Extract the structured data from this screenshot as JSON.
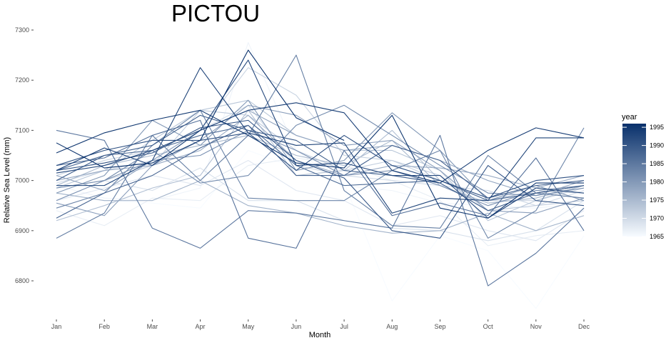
{
  "chart_data": {
    "type": "line",
    "title": "PICTOU",
    "xlabel": "Month",
    "ylabel": "Relative Sea Level (mm)",
    "categories": [
      "Jan",
      "Feb",
      "Mar",
      "Apr",
      "May",
      "Jun",
      "Jul",
      "Aug",
      "Sep",
      "Oct",
      "Nov",
      "Dec"
    ],
    "ylim": [
      6750,
      7300
    ],
    "yticks": [
      6800,
      6900,
      7000,
      7100,
      7200,
      7300
    ],
    "grid": false,
    "legend": {
      "title": "year",
      "placement": "right",
      "type": "colorbar",
      "range": [
        1965,
        1996
      ],
      "ticks": [
        1965,
        1970,
        1975,
        1980,
        1985,
        1990,
        1995
      ],
      "color_low": "#f7fbff",
      "color_high": "#08306b"
    },
    "series": [
      {
        "year": 1965,
        "values": [
          6975,
          6960,
          6955,
          6945,
          7060,
          7025,
          6995,
          6760,
          6890,
          6860,
          6745,
          6890
        ]
      },
      {
        "year": 1966,
        "values": [
          6990,
          6965,
          6960,
          6985,
          7275,
          7060,
          6990,
          6980,
          6955,
          6950,
          6945,
          6955
        ]
      },
      {
        "year": 1967,
        "values": [
          6940,
          6910,
          6965,
          6960,
          7030,
          7045,
          7030,
          7000,
          6960,
          6870,
          6890,
          6900
        ]
      },
      {
        "year": 1968,
        "values": [
          6960,
          6985,
          7010,
          6990,
          7040,
          6980,
          6960,
          6910,
          6930,
          6900,
          6880,
          6940
        ]
      },
      {
        "year": 1969,
        "values": [
          6985,
          7000,
          6980,
          7025,
          6960,
          6960,
          6920,
          6905,
          6900,
          6880,
          6900,
          6960
        ]
      },
      {
        "year": 1970,
        "values": [
          6995,
          7020,
          7040,
          7100,
          7150,
          7030,
          7010,
          7000,
          6990,
          6980,
          6950,
          6980
        ]
      },
      {
        "year": 1971,
        "values": [
          7010,
          7040,
          7060,
          7100,
          7225,
          7170,
          7050,
          7040,
          7000,
          6960,
          6960,
          6985
        ]
      },
      {
        "year": 1972,
        "values": [
          6960,
          7000,
          7030,
          7140,
          7130,
          7060,
          7020,
          7040,
          7010,
          6940,
          6950,
          6960
        ]
      },
      {
        "year": 1973,
        "values": [
          6985,
          7020,
          7080,
          7140,
          7160,
          7090,
          7060,
          7060,
          7020,
          6920,
          6960,
          6990
        ]
      },
      {
        "year": 1974,
        "values": [
          6920,
          6950,
          6985,
          7010,
          7140,
          7010,
          7020,
          7100,
          7000,
          6960,
          6980,
          6975
        ]
      },
      {
        "year": 1975,
        "values": [
          6990,
          7030,
          7050,
          7070,
          7090,
          7050,
          7030,
          7080,
          6990,
          6955,
          6965,
          6990
        ]
      },
      {
        "year": 1976,
        "values": [
          6975,
          6960,
          6960,
          7000,
          6950,
          6935,
          6910,
          6895,
          6900,
          6935,
          6900,
          6930
        ]
      },
      {
        "year": 1977,
        "values": [
          7000,
          7020,
          7030,
          7060,
          7130,
          7040,
          7010,
          7030,
          7025,
          7010,
          6985,
          7010
        ]
      },
      {
        "year": 1978,
        "values": [
          7010,
          6980,
          7040,
          7100,
          7140,
          7090,
          7060,
          7070,
          7040,
          7000,
          6970,
          7000
        ]
      },
      {
        "year": 1979,
        "values": [
          6955,
          6930,
          7030,
          7080,
          7150,
          7130,
          7070,
          7080,
          7020,
          6940,
          6935,
          6965
        ]
      },
      {
        "year": 1980,
        "values": [
          6975,
          7010,
          7120,
          7070,
          7160,
          7020,
          7040,
          7135,
          7060,
          6960,
          6990,
          6960
        ]
      },
      {
        "year": 1981,
        "values": [
          6960,
          7000,
          7040,
          7050,
          7100,
          7060,
          7010,
          7020,
          6990,
          6950,
          6980,
          6990
        ]
      },
      {
        "year": 1982,
        "values": [
          6985,
          7000,
          7060,
          6995,
          7010,
          7110,
          7150,
          7090,
          7030,
          6975,
          6970,
          6985
        ]
      },
      {
        "year": 1983,
        "values": [
          6945,
          6975,
          7070,
          7140,
          6965,
          6960,
          6960,
          7020,
          7060,
          6885,
          6940,
          7105
        ]
      },
      {
        "year": 1984,
        "values": [
          6885,
          6935,
          7090,
          7000,
          7090,
          7250,
          6980,
          6910,
          6905,
          7050,
          6975,
          6965
        ]
      },
      {
        "year": 1985,
        "values": [
          7100,
          7080,
          6905,
          6865,
          6940,
          6935,
          6920,
          6905,
          7090,
          6790,
          6855,
          6945
        ]
      },
      {
        "year": 1986,
        "values": [
          7030,
          7045,
          7090,
          7120,
          6885,
          6865,
          7060,
          6930,
          6955,
          6930,
          7045,
          6900
        ]
      },
      {
        "year": 1987,
        "values": [
          7020,
          7050,
          7060,
          7090,
          7110,
          7030,
          6990,
          6995,
          7000,
          6960,
          6975,
          6990
        ]
      },
      {
        "year": 1988,
        "values": [
          6925,
          6975,
          7010,
          7065,
          7110,
          7010,
          7010,
          7070,
          7040,
          6965,
          6990,
          7000
        ]
      },
      {
        "year": 1989,
        "values": [
          7000,
          7050,
          7070,
          7130,
          7100,
          7080,
          7020,
          7010,
          6995,
          6940,
          6975,
          6990
        ]
      },
      {
        "year": 1990,
        "values": [
          7020,
          7035,
          7055,
          7105,
          7120,
          7040,
          7005,
          6900,
          6885,
          7030,
          6960,
          6950
        ]
      },
      {
        "year": 1991,
        "values": [
          7030,
          7060,
          7080,
          7080,
          7095,
          7020,
          7090,
          7030,
          7000,
          6965,
          7000,
          7010
        ]
      },
      {
        "year": 1992,
        "values": [
          7015,
          7030,
          7060,
          7100,
          7240,
          7030,
          7035,
          7010,
          7010,
          6925,
          6985,
          6975
        ]
      },
      {
        "year": 1993,
        "values": [
          6990,
          6990,
          7040,
          7225,
          7095,
          7070,
          7075,
          6935,
          6965,
          6960,
          7085,
          7085
        ]
      },
      {
        "year": 1994,
        "values": [
          7020,
          7065,
          7030,
          7100,
          7140,
          7155,
          7135,
          7020,
          6995,
          7060,
          7105,
          7085
        ]
      },
      {
        "year": 1995,
        "values": [
          7055,
          7095,
          7120,
          7140,
          7090,
          7035,
          7025,
          7130,
          6945,
          6925,
          6995,
          6995
        ]
      },
      {
        "year": 1996,
        "values": [
          7075,
          7025,
          7035,
          7080,
          7260,
          7125,
          7080,
          null,
          null,
          null,
          null,
          null
        ]
      }
    ]
  }
}
